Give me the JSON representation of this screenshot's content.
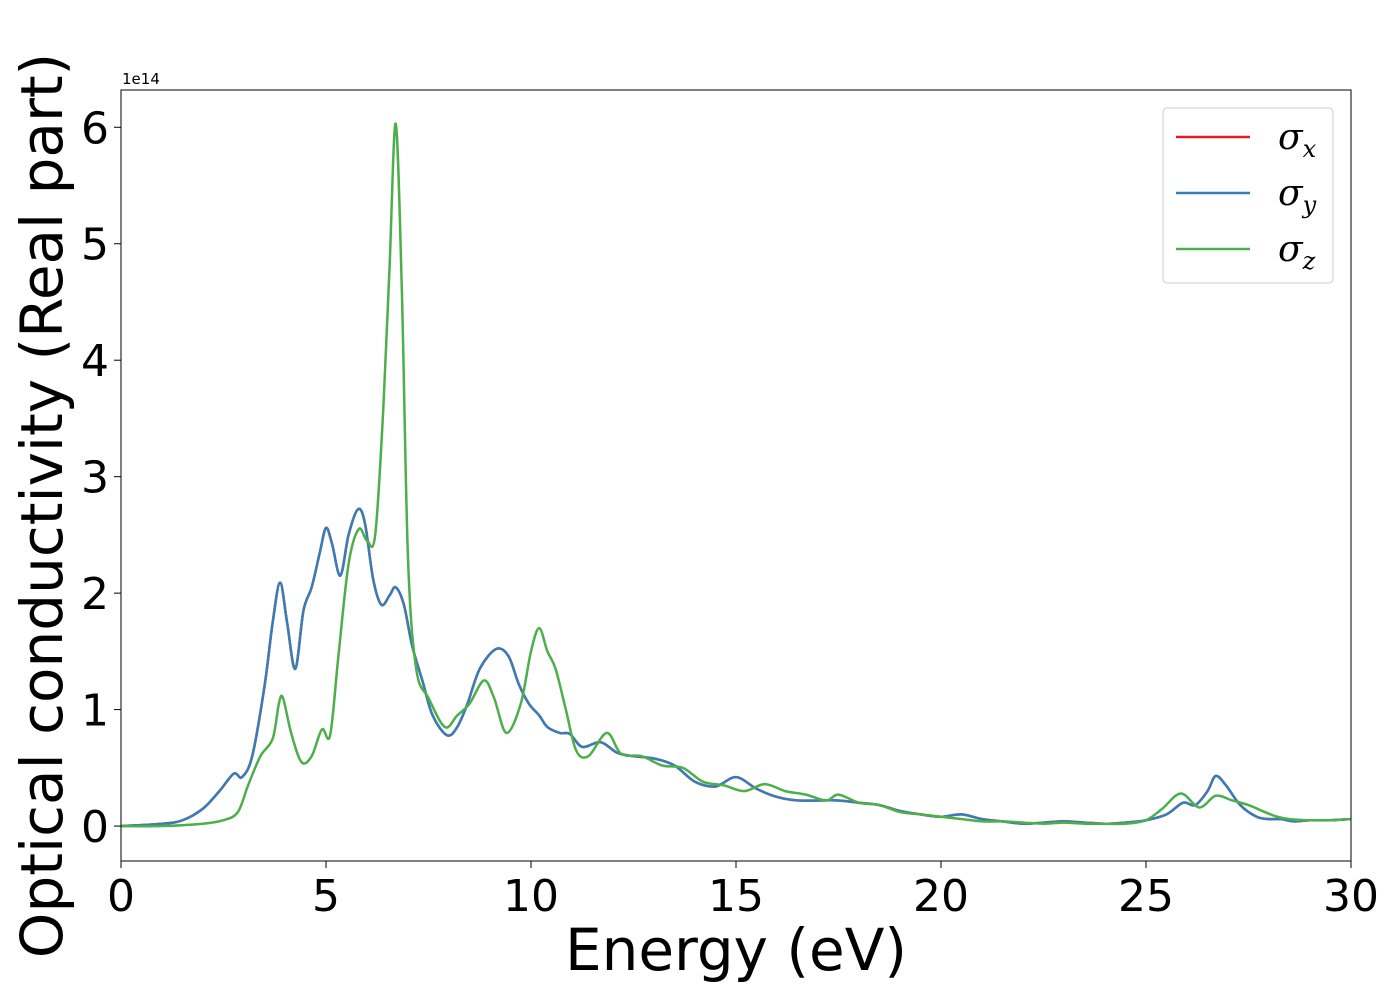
{
  "chart_data": {
    "type": "line",
    "xlabel": "Energy (eV)",
    "ylabel": "Optical conductivity (Real part)",
    "y_offset_label": "1e14",
    "xlim": [
      0,
      30
    ],
    "ylim": [
      -0.3,
      6.32
    ],
    "x_ticks": [
      0,
      5,
      10,
      15,
      20,
      25,
      30
    ],
    "x_tick_labels": [
      "0",
      "5",
      "10",
      "15",
      "20",
      "25",
      "30"
    ],
    "y_ticks": [
      0,
      1,
      2,
      3,
      4,
      5,
      6
    ],
    "y_tick_labels": [
      "0",
      "1",
      "2",
      "3",
      "4",
      "5",
      "6"
    ],
    "grid": false,
    "legend_position": "top-right",
    "series": [
      {
        "name": "σx",
        "symbol": "σ",
        "subscript": "x",
        "color": "#e41a1c",
        "x": [
          0,
          1,
          1.5,
          2,
          2.4,
          2.75,
          2.95,
          3.2,
          3.5,
          3.7,
          3.88,
          4.05,
          4.25,
          4.45,
          4.65,
          4.85,
          5.0,
          5.15,
          5.35,
          5.55,
          5.78,
          5.95,
          6.15,
          6.35,
          6.55,
          6.7,
          6.9,
          7.1,
          7.35,
          7.6,
          7.95,
          8.2,
          8.45,
          8.75,
          9.15,
          9.45,
          9.7,
          9.95,
          10.2,
          10.4,
          10.7,
          10.95,
          11.25,
          11.7,
          12.1,
          12.5,
          13.0,
          13.5,
          14.0,
          14.5,
          15.0,
          15.5,
          16.0,
          16.5,
          17.0,
          17.5,
          18.0,
          18.5,
          19.0,
          19.5,
          20.0,
          20.5,
          21.0,
          21.5,
          22.0,
          22.5,
          23.0,
          23.5,
          24.0,
          24.5,
          25.0,
          25.5,
          25.9,
          26.2,
          26.5,
          26.7,
          26.95,
          27.3,
          27.7,
          28.0,
          28.3,
          28.6,
          29.0,
          29.5,
          30
        ],
        "y": [
          0,
          0.02,
          0.05,
          0.15,
          0.3,
          0.45,
          0.42,
          0.6,
          1.2,
          1.75,
          2.09,
          1.75,
          1.35,
          1.85,
          2.05,
          2.35,
          2.56,
          2.42,
          2.15,
          2.5,
          2.72,
          2.6,
          2.12,
          1.9,
          1.98,
          2.05,
          1.9,
          1.55,
          1.25,
          0.95,
          0.78,
          0.85,
          1.05,
          1.35,
          1.52,
          1.46,
          1.22,
          1.05,
          0.95,
          0.85,
          0.8,
          0.79,
          0.68,
          0.72,
          0.63,
          0.6,
          0.58,
          0.52,
          0.38,
          0.34,
          0.42,
          0.32,
          0.25,
          0.22,
          0.22,
          0.22,
          0.2,
          0.18,
          0.13,
          0.1,
          0.08,
          0.1,
          0.06,
          0.04,
          0.02,
          0.03,
          0.04,
          0.03,
          0.02,
          0.03,
          0.05,
          0.1,
          0.2,
          0.18,
          0.3,
          0.43,
          0.35,
          0.18,
          0.08,
          0.06,
          0.06,
          0.04,
          0.05,
          0.05,
          0.06
        ]
      },
      {
        "name": "σy",
        "symbol": "σ",
        "subscript": "y",
        "color": "#377eb8",
        "x": [
          0,
          1,
          1.5,
          2,
          2.4,
          2.75,
          2.95,
          3.2,
          3.5,
          3.7,
          3.88,
          4.05,
          4.25,
          4.45,
          4.65,
          4.85,
          5.0,
          5.15,
          5.35,
          5.55,
          5.78,
          5.95,
          6.15,
          6.35,
          6.55,
          6.7,
          6.9,
          7.1,
          7.35,
          7.6,
          7.95,
          8.2,
          8.45,
          8.75,
          9.15,
          9.45,
          9.7,
          9.95,
          10.2,
          10.4,
          10.7,
          10.95,
          11.25,
          11.7,
          12.1,
          12.5,
          13.0,
          13.5,
          14.0,
          14.5,
          15.0,
          15.5,
          16.0,
          16.5,
          17.0,
          17.5,
          18.0,
          18.5,
          19.0,
          19.5,
          20.0,
          20.5,
          21.0,
          21.5,
          22.0,
          22.5,
          23.0,
          23.5,
          24.0,
          24.5,
          25.0,
          25.5,
          25.9,
          26.2,
          26.5,
          26.7,
          26.95,
          27.3,
          27.7,
          28.0,
          28.3,
          28.6,
          29.0,
          29.5,
          30
        ],
        "y": [
          0,
          0.02,
          0.05,
          0.15,
          0.3,
          0.45,
          0.42,
          0.6,
          1.2,
          1.75,
          2.09,
          1.75,
          1.35,
          1.85,
          2.05,
          2.35,
          2.56,
          2.42,
          2.15,
          2.5,
          2.72,
          2.6,
          2.12,
          1.9,
          1.98,
          2.05,
          1.9,
          1.55,
          1.25,
          0.95,
          0.78,
          0.85,
          1.05,
          1.35,
          1.52,
          1.46,
          1.22,
          1.05,
          0.95,
          0.85,
          0.8,
          0.79,
          0.68,
          0.72,
          0.63,
          0.6,
          0.58,
          0.52,
          0.38,
          0.34,
          0.42,
          0.32,
          0.25,
          0.22,
          0.22,
          0.22,
          0.2,
          0.18,
          0.13,
          0.1,
          0.08,
          0.1,
          0.06,
          0.04,
          0.02,
          0.03,
          0.04,
          0.03,
          0.02,
          0.03,
          0.05,
          0.1,
          0.2,
          0.18,
          0.3,
          0.43,
          0.35,
          0.18,
          0.08,
          0.06,
          0.06,
          0.04,
          0.05,
          0.05,
          0.06
        ]
      },
      {
        "name": "σz",
        "symbol": "σ",
        "subscript": "z",
        "color": "#4daf4a",
        "x": [
          0,
          1,
          2,
          2.5,
          2.85,
          3.1,
          3.4,
          3.7,
          3.85,
          3.95,
          4.15,
          4.4,
          4.65,
          4.9,
          5.1,
          5.3,
          5.55,
          5.8,
          6.0,
          6.2,
          6.4,
          6.55,
          6.7,
          6.85,
          7.0,
          7.2,
          7.5,
          7.9,
          8.2,
          8.5,
          8.85,
          9.1,
          9.4,
          9.75,
          10.0,
          10.2,
          10.4,
          10.6,
          10.85,
          11.1,
          11.4,
          11.85,
          12.2,
          12.7,
          13.2,
          13.7,
          14.2,
          14.7,
          15.2,
          15.7,
          16.2,
          16.7,
          17.2,
          17.5,
          18.0,
          18.5,
          19.0,
          19.5,
          20.0,
          20.5,
          21.0,
          21.5,
          22.0,
          22.5,
          23.0,
          23.5,
          24.0,
          24.5,
          25.0,
          25.4,
          25.85,
          26.3,
          26.7,
          27.1,
          27.5,
          27.9,
          28.2,
          28.5,
          29.0,
          29.5,
          30
        ],
        "y": [
          0,
          0.0,
          0.02,
          0.05,
          0.12,
          0.35,
          0.6,
          0.75,
          1.05,
          1.1,
          0.8,
          0.55,
          0.6,
          0.83,
          0.78,
          1.45,
          2.25,
          2.55,
          2.45,
          2.5,
          3.6,
          4.8,
          6.03,
          4.6,
          2.3,
          1.35,
          1.1,
          0.85,
          0.95,
          1.05,
          1.25,
          1.1,
          0.8,
          1.05,
          1.5,
          1.7,
          1.5,
          1.35,
          1.0,
          0.65,
          0.6,
          0.8,
          0.62,
          0.6,
          0.52,
          0.5,
          0.38,
          0.35,
          0.3,
          0.36,
          0.3,
          0.27,
          0.22,
          0.27,
          0.2,
          0.18,
          0.12,
          0.1,
          0.08,
          0.06,
          0.04,
          0.04,
          0.03,
          0.02,
          0.03,
          0.02,
          0.02,
          0.02,
          0.05,
          0.15,
          0.28,
          0.16,
          0.26,
          0.22,
          0.18,
          0.12,
          0.08,
          0.06,
          0.05,
          0.05,
          0.06
        ]
      }
    ]
  }
}
